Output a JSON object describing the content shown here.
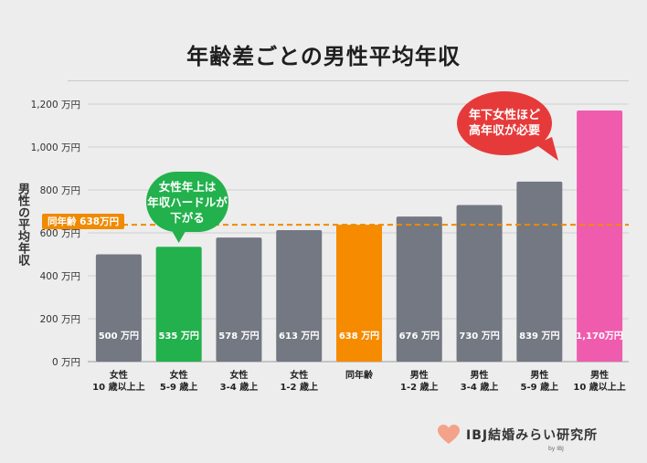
{
  "chart_data": {
    "type": "bar",
    "title": "年齢差ごとの男性平均年収",
    "ylabel": "男性の平均年収",
    "ylim": [
      0,
      1200
    ],
    "yticks": [
      0,
      200,
      400,
      600,
      800,
      1000,
      1200
    ],
    "ytick_labels": [
      "0 万円",
      "200 万円",
      "400 万円",
      "600 万円",
      "800 万円",
      "1,000 万円",
      "1,200 万円"
    ],
    "categories": [
      [
        "女性",
        "10 歳以上上"
      ],
      [
        "女性",
        "5-9 歳上"
      ],
      [
        "女性",
        "3-4 歳上"
      ],
      [
        "女性",
        "1-2 歳上"
      ],
      [
        "同年齢"
      ],
      [
        "男性",
        "1-2 歳上"
      ],
      [
        "男性",
        "3-4 歳上"
      ],
      [
        "男性",
        "5-9 歳上"
      ],
      [
        "男性",
        "10 歳以上上"
      ]
    ],
    "values": [
      500,
      535,
      578,
      613,
      638,
      676,
      730,
      839,
      1170
    ],
    "value_labels": [
      "500 万円",
      "535 万円",
      "578 万円",
      "613 万円",
      "638 万円",
      "676 万円",
      "730 万円",
      "839 万円",
      "1,170万円"
    ],
    "bar_colors": [
      "#737882",
      "#22b14c",
      "#737882",
      "#737882",
      "#f68b00",
      "#737882",
      "#737882",
      "#737882",
      "#ef5cae"
    ],
    "reference_line": {
      "value": 638,
      "label": "同年齢 638万円",
      "color": "#f08a00"
    },
    "annotations": [
      {
        "text": "女性年上は\n年収ハードルが\n下がる",
        "target_index": 1,
        "color": "#22b14c"
      },
      {
        "text": "年下女性ほど\n高年収が必要",
        "target_index": 8,
        "color": "#e63a3a"
      }
    ],
    "grid": true,
    "legend": "none"
  },
  "logo": {
    "text": "IBJ結婚みらい研究所",
    "sub": "by IBJ",
    "icon": "heart-icon",
    "color": "#f3a38a"
  }
}
